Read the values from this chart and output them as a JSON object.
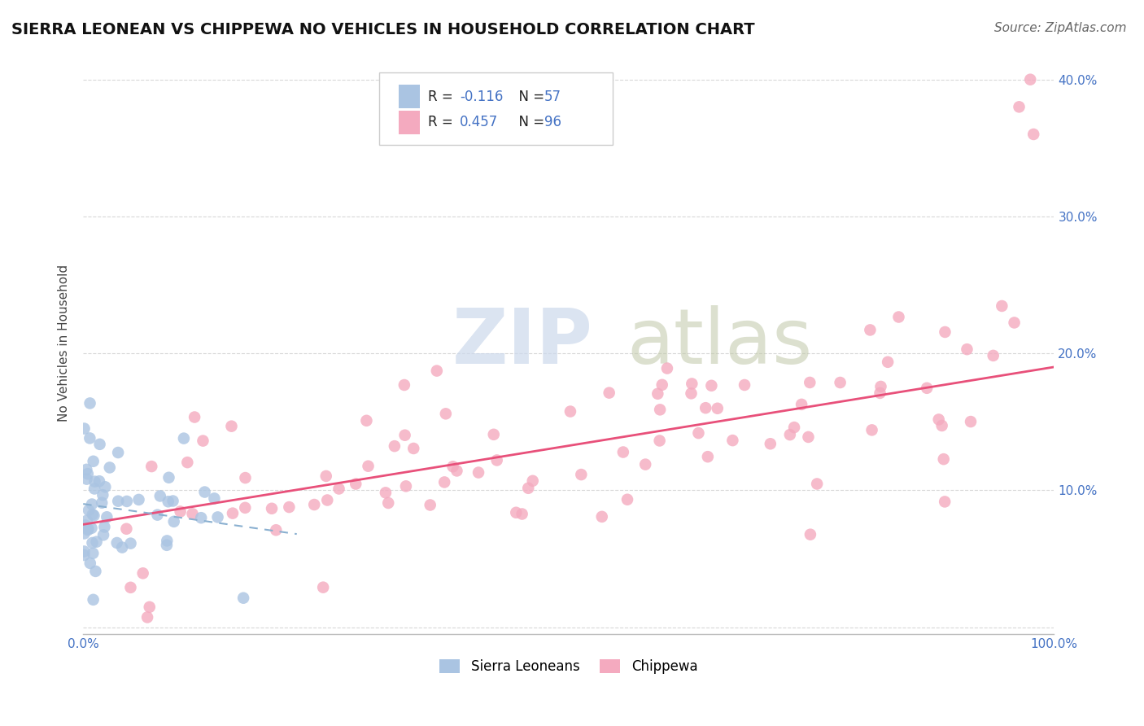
{
  "title": "SIERRA LEONEAN VS CHIPPEWA NO VEHICLES IN HOUSEHOLD CORRELATION CHART",
  "source": "Source: ZipAtlas.com",
  "ylabel": "No Vehicles in Household",
  "xlim": [
    0,
    1.0
  ],
  "ylim": [
    -0.005,
    0.42
  ],
  "xticks": [
    0.0,
    0.1,
    0.2,
    0.3,
    0.4,
    0.5,
    0.6,
    0.7,
    0.8,
    0.9,
    1.0
  ],
  "yticks": [
    0.0,
    0.1,
    0.2,
    0.3,
    0.4
  ],
  "ytick_labels_right": [
    "",
    "10.0%",
    "20.0%",
    "30.0%",
    "40.0%"
  ],
  "xtick_labels": [
    "0.0%",
    "",
    "",
    "",
    "",
    "",
    "",
    "",
    "",
    "",
    "100.0%"
  ],
  "sierra_R": -0.116,
  "sierra_N": 57,
  "chippewa_R": 0.457,
  "chippewa_N": 96,
  "sierra_color": "#aac4e2",
  "chippewa_color": "#f4aabf",
  "chippewa_line_color": "#e8507a",
  "sierra_line_color": "#8ab0d0",
  "watermark_zip": "ZIP",
  "watermark_atlas": "atlas",
  "background_color": "#ffffff",
  "grid_color": "#d8d8d8",
  "legend_R1": "R = -0.116",
  "legend_N1": "N = 57",
  "legend_R2": "R = 0.457",
  "legend_N2": "N = 96",
  "legend_label1": "Sierra Leoneans",
  "legend_label2": "Chippewa",
  "title_fontsize": 14,
  "source_fontsize": 11,
  "tick_fontsize": 11,
  "ylabel_fontsize": 11
}
